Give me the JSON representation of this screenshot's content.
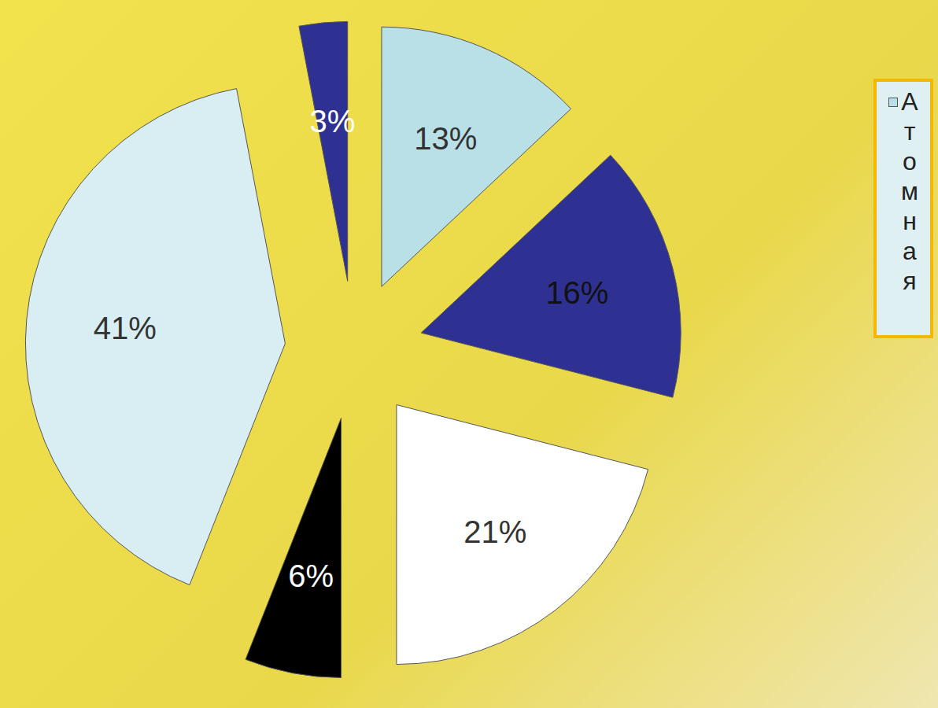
{
  "chart_data": {
    "type": "pie",
    "categories": [
      "Атомная",
      null,
      null,
      null,
      null,
      null
    ],
    "values": [
      13,
      16,
      21,
      6,
      41,
      3
    ],
    "value_labels": [
      "13%",
      "16%",
      "21%",
      "6%",
      "41%",
      "3%"
    ],
    "colors": [
      "#b9e0e6",
      "#2e3192",
      "#ffffff",
      "#000000",
      "#d8eef2",
      "#2e3192"
    ],
    "data_labels": true,
    "legend": "right"
  }
}
